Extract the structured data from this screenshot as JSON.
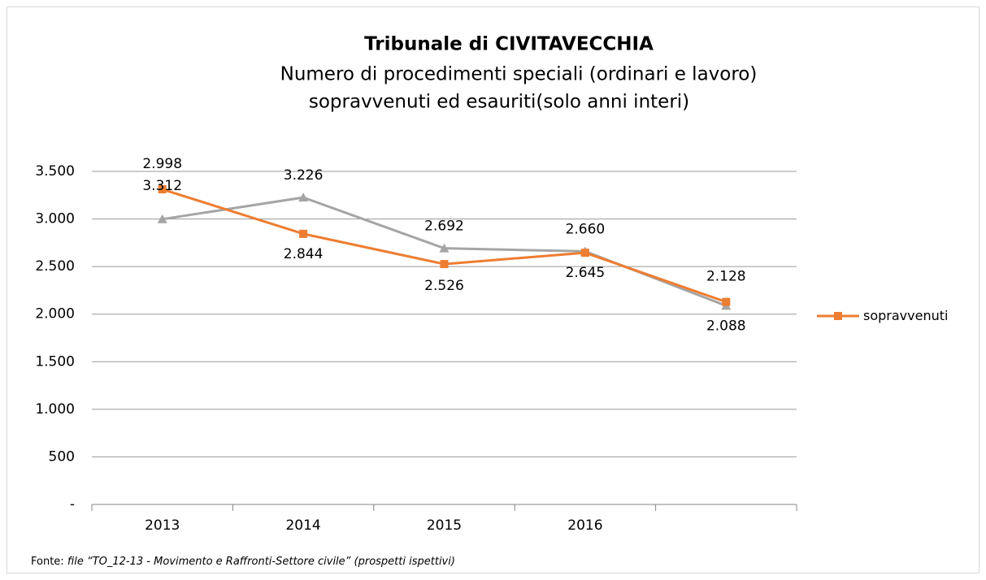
{
  "chart_data": {
    "type": "line",
    "title": "Tribunale di CIVITAVECCHIA",
    "subtitle": [
      "Numero di procedimenti speciali (ordinari e lavoro)",
      "sopravvenuti ed esauriti(solo anni interi)"
    ],
    "categories": [
      "2013",
      "2014",
      "2015",
      "2016",
      null
    ],
    "series": [
      {
        "color": "#a5a5a5",
        "marker": "triangle",
        "values": [
          2998,
          3226,
          2692,
          2660,
          2088
        ],
        "value_labels": [
          "2.998",
          "3.226",
          "2.692",
          "2.660",
          "2.088"
        ]
      },
      {
        "name": "sopravvenuti",
        "color": "#ed7d31",
        "marker": "square",
        "values": [
          3312,
          2844,
          2526,
          2645,
          2128
        ],
        "value_labels": [
          "3.312",
          "2.844",
          "2.526",
          "2.645",
          "2.128"
        ]
      }
    ],
    "ylim": [
      0,
      3500
    ],
    "yticks": [
      {
        "value": 0,
        "label": "-"
      },
      500,
      {
        "value": 1000,
        "label": "1.000"
      },
      {
        "value": 1500,
        "label": "1.500"
      },
      {
        "value": 2000,
        "label": "2.000"
      },
      {
        "value": 2500,
        "label": "2.500"
      },
      {
        "value": 3000,
        "label": "3.000"
      },
      {
        "value": 3500,
        "label": "3.500"
      }
    ],
    "grid": true,
    "legend": "right",
    "source": {
      "prefix": "Fonte:",
      "text": "file “TO_12-13 - Movimento e Raffronti-Settore civile” (prospetti ispettivi)"
    }
  }
}
